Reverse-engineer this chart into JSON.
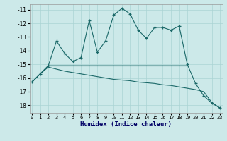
{
  "bg_color": "#cce9e9",
  "grid_color": "#aad4d4",
  "line_color": "#1a6868",
  "xlabel": "Humidex (Indice chaleur)",
  "xlim": [
    -0.3,
    23.3
  ],
  "ylim": [
    -18.55,
    -10.6
  ],
  "yticks": [
    -11,
    -12,
    -13,
    -14,
    -15,
    -16,
    -17,
    -18
  ],
  "xticks": [
    0,
    1,
    2,
    3,
    4,
    5,
    6,
    7,
    8,
    9,
    10,
    11,
    12,
    13,
    14,
    15,
    16,
    17,
    18,
    19,
    20,
    21,
    22,
    23
  ],
  "line1_x": [
    0,
    1,
    2,
    3,
    4,
    5,
    6,
    7,
    8,
    9,
    10,
    11,
    12,
    13,
    14,
    15,
    16,
    17,
    18,
    19,
    20,
    21,
    22,
    23
  ],
  "line1_y": [
    -16.3,
    -15.7,
    -15.1,
    -13.3,
    -14.2,
    -14.8,
    -14.5,
    -11.8,
    -14.1,
    -13.3,
    -11.4,
    -10.9,
    -11.3,
    -12.5,
    -13.1,
    -12.3,
    -12.3,
    -12.5,
    -12.2,
    -15.0,
    -16.4,
    -17.3,
    -17.85,
    -18.2
  ],
  "line2_x": [
    0,
    1,
    2,
    19
  ],
  "line2_y": [
    -16.3,
    -15.7,
    -15.1,
    -15.1
  ],
  "line3_x": [
    2,
    19
  ],
  "line3_y": [
    -15.1,
    -15.1
  ],
  "line4_x": [
    0,
    1,
    2,
    3,
    4,
    5,
    6,
    7,
    8,
    9,
    10,
    11,
    12,
    13,
    14,
    15,
    16,
    17,
    18,
    19,
    20,
    21,
    22,
    23
  ],
  "line4_y": [
    -16.3,
    -15.7,
    -15.2,
    -15.35,
    -15.5,
    -15.6,
    -15.7,
    -15.8,
    -15.9,
    -16.0,
    -16.1,
    -16.15,
    -16.2,
    -16.3,
    -16.35,
    -16.4,
    -16.5,
    -16.55,
    -16.65,
    -16.75,
    -16.85,
    -17.0,
    -17.8,
    -18.2
  ]
}
